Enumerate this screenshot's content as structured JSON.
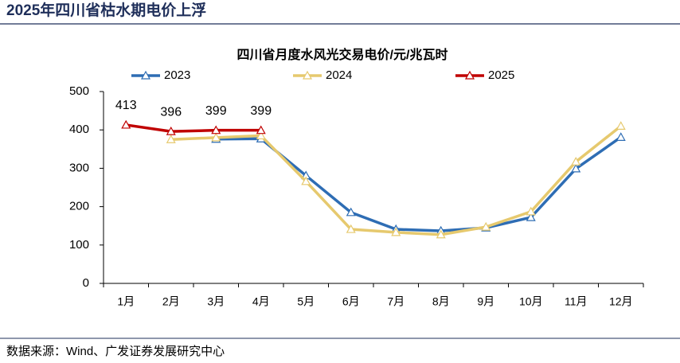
{
  "header": {
    "title": "2025年四川省枯水期电价上浮"
  },
  "footer": {
    "source": "数据来源：Wind、广发证券发展研究中心"
  },
  "chart_data": {
    "type": "line",
    "title": "四川省月度水风光交易电价/元/兆瓦时",
    "categories": [
      "1月",
      "2月",
      "3月",
      "4月",
      "5月",
      "6月",
      "7月",
      "8月",
      "9月",
      "10月",
      "11月",
      "12月"
    ],
    "series": [
      {
        "name": "2023",
        "color": "#2e6db4",
        "values": [
          null,
          null,
          376,
          377,
          281,
          185,
          141,
          137,
          145,
          172,
          299,
          381
        ]
      },
      {
        "name": "2024",
        "color": "#e6c96e",
        "values": [
          null,
          375,
          380,
          385,
          266,
          141,
          133,
          127,
          147,
          187,
          317,
          410
        ]
      },
      {
        "name": "2025",
        "color": "#c00000",
        "values": [
          413,
          396,
          399,
          399,
          null,
          null,
          null,
          null,
          null,
          null,
          null,
          null
        ],
        "data_labels": true
      }
    ],
    "ylim": [
      0,
      500
    ],
    "yticks": [
      0,
      100,
      200,
      300,
      400,
      500
    ],
    "legend": "top"
  }
}
